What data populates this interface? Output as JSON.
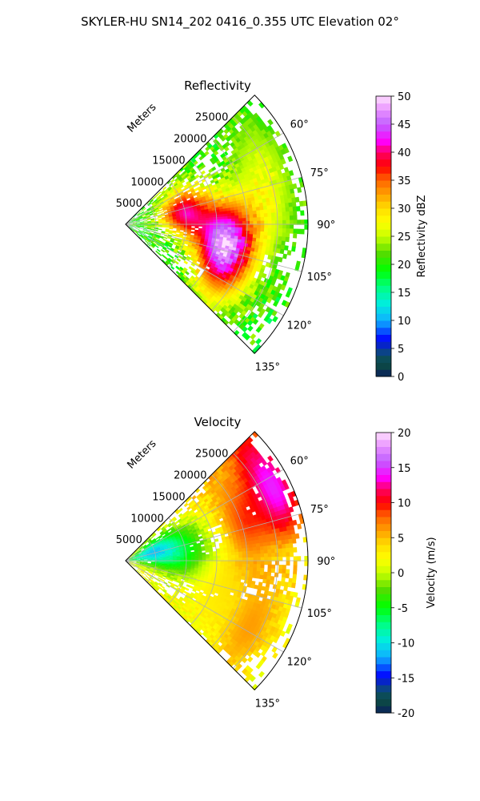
{
  "figure": {
    "title": "SKYLER-HU  SN14_202  0416_0.355 UTC Elevation 02°"
  },
  "chart_data": [
    {
      "type": "heatmap",
      "projection": "polar-sector",
      "title": "Reflectivity",
      "radial_axis_label": "Meters",
      "radial_ticks": [
        "5000",
        "10000",
        "15000",
        "20000",
        "25000"
      ],
      "radial_tick_values": [
        5000,
        10000,
        15000,
        20000,
        25000
      ],
      "radial_max": 30000,
      "angular_ticks": [
        "60°",
        "75°",
        "90°",
        "105°",
        "120°",
        "135°"
      ],
      "angular_tick_values": [
        60,
        75,
        90,
        105,
        120,
        135
      ],
      "angular_range": [
        45,
        135
      ],
      "grid": true,
      "colorbar": {
        "label": "Reflectivity dBZ",
        "range": [
          0,
          50
        ],
        "ticks": [
          "0",
          "5",
          "10",
          "15",
          "20",
          "25",
          "30",
          "35",
          "40",
          "45",
          "50"
        ],
        "tick_values": [
          0,
          5,
          10,
          15,
          20,
          25,
          30,
          35,
          40,
          45,
          50
        ]
      },
      "features": [
        {
          "azimuth": 78,
          "range": 9500,
          "value": 40
        },
        {
          "azimuth": 100,
          "range": 16000,
          "value": 45
        },
        {
          "azimuth": 84,
          "range": 22000,
          "value": 25
        },
        {
          "azimuth": 66,
          "range": 25000,
          "value": 24
        },
        {
          "azimuth": 113,
          "range": 19000,
          "value": 27
        }
      ]
    },
    {
      "type": "heatmap",
      "projection": "polar-sector",
      "title": "Velocity",
      "radial_axis_label": "Meters",
      "radial_ticks": [
        "5000",
        "10000",
        "15000",
        "20000",
        "25000"
      ],
      "radial_tick_values": [
        5000,
        10000,
        15000,
        20000,
        25000
      ],
      "radial_max": 30000,
      "angular_ticks": [
        "60°",
        "75°",
        "90°",
        "105°",
        "120°",
        "135°"
      ],
      "angular_tick_values": [
        60,
        75,
        90,
        105,
        120,
        135
      ],
      "angular_range": [
        45,
        135
      ],
      "grid": true,
      "colorbar": {
        "label": "Velocity (m/s)",
        "range": [
          -20,
          20
        ],
        "ticks": [
          "-20",
          "-15",
          "-10",
          "-5",
          "0",
          "5",
          "10",
          "15",
          "20"
        ],
        "tick_values": [
          -20,
          -15,
          -10,
          -5,
          0,
          5,
          10,
          15,
          20
        ]
      },
      "features": [
        {
          "azimuth": 62,
          "range": 27000,
          "value": 14
        },
        {
          "azimuth": 70,
          "range": 20000,
          "value": 8
        },
        {
          "azimuth": 80,
          "range": 9000,
          "value": -5
        },
        {
          "azimuth": 73,
          "range": 4000,
          "value": -10
        },
        {
          "azimuth": 108,
          "range": 15000,
          "value": 3
        },
        {
          "azimuth": 118,
          "range": 23000,
          "value": 6
        }
      ]
    }
  ]
}
